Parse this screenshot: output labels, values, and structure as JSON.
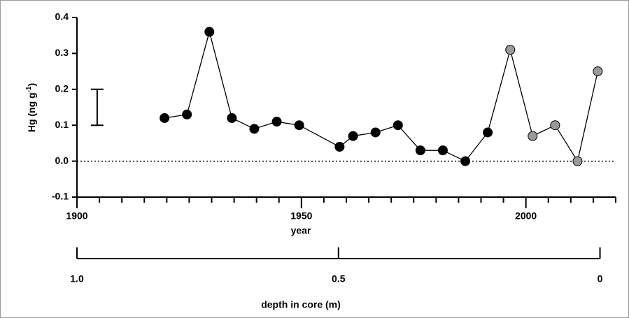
{
  "chart_data": {
    "type": "line",
    "xlabel": "year",
    "ylabel_parts": [
      "Hg (ng g",
      "-1",
      ")"
    ],
    "x": [
      1919.5,
      1924.5,
      1929.5,
      1934.5,
      1939.5,
      1944.5,
      1949.5,
      1958.5,
      1961.5,
      1966.5,
      1971.5,
      1976.5,
      1981.5,
      1986.5,
      1991.5,
      1996.5,
      2001.5,
      2006.5,
      2011.5,
      2016
    ],
    "series": [
      {
        "color": "#000000",
        "values": [
          0.12,
          0.13,
          0.36,
          0.12,
          0.09,
          0.11,
          0.1,
          0.04,
          0.07,
          0.08,
          0.1,
          0.03,
          0.03,
          0.0,
          0.08,
          0.31,
          0.07,
          0.1,
          0.0,
          0.25
        ],
        "point_colors": [
          "#000000",
          "#000000",
          "#000000",
          "#000000",
          "#000000",
          "#000000",
          "#000000",
          "#000000",
          "#000000",
          "#000000",
          "#000000",
          "#000000",
          "#000000",
          "#000000",
          "#000000",
          "#999999",
          "#999999",
          "#999999",
          "#999999",
          "#999999"
        ]
      }
    ],
    "xlim": [
      1900,
      2020
    ],
    "xticks": [
      1900,
      1950,
      2000
    ],
    "xminor_ticks": [
      1905,
      1910,
      1915,
      1920,
      1925,
      1930,
      1935,
      1940,
      1945,
      1955,
      1960,
      1965,
      1970,
      1975,
      1980,
      1985,
      1990,
      1995,
      2005,
      2010,
      2015,
      2020
    ],
    "ylim": [
      -0.1,
      0.4
    ],
    "yticks": [
      0.4,
      0.3,
      0.2,
      0.1,
      {
        "value": 0,
        "label": "0.0"
      },
      -0.1
    ],
    "reference_line": 0,
    "error_bar": {
      "x": 1904.5,
      "low": 0.1,
      "high": 0.2
    },
    "depth_axis": {
      "label": "depth in core (m)",
      "lim": [
        1,
        0
      ],
      "ticks": [
        {
          "value": 1,
          "label": "1.0"
        },
        0.5,
        0
      ]
    },
    "depth_axis_right_year": 2016.5
  }
}
